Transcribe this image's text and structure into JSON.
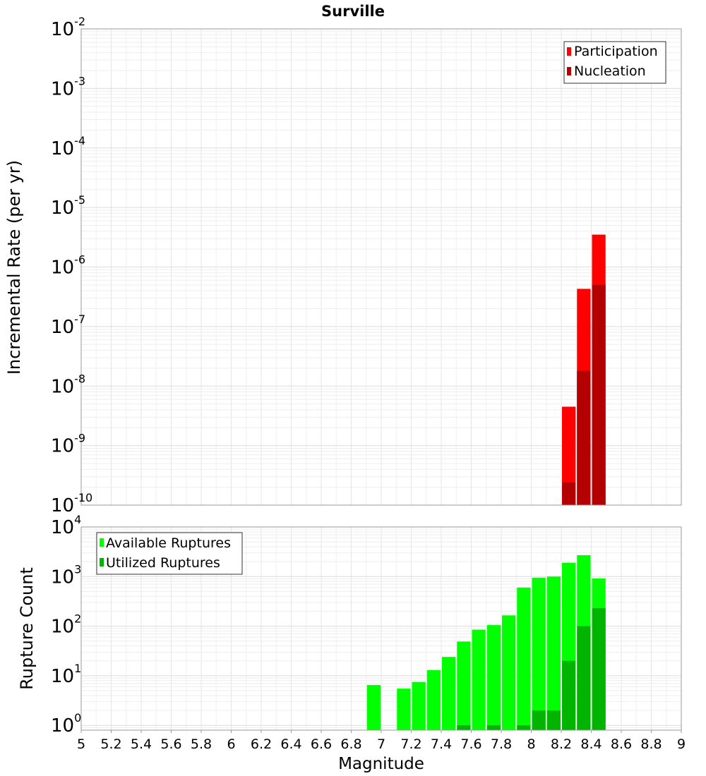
{
  "chart_data": [
    {
      "type": "bar",
      "title": "Surville",
      "xlabel": "",
      "ylabel": "Incremental Rate (per yr)",
      "xlim": [
        5,
        9
      ],
      "ylim": [
        1e-10,
        0.01
      ],
      "yscale": "log",
      "y_tick_exponents": [
        "-10",
        "-9",
        "-8",
        "-7",
        "-6",
        "-5",
        "-4",
        "-3",
        "-2"
      ],
      "grid": true,
      "legend_position": "top-right",
      "bar_width": 0.1,
      "series": [
        {
          "name": "Participation",
          "color": "#ff0000",
          "points": [
            {
              "x": 8.25,
              "y": 4.5e-09
            },
            {
              "x": 8.35,
              "y": 4.3e-07
            },
            {
              "x": 8.45,
              "y": 3.5e-06
            }
          ]
        },
        {
          "name": "Nucleation",
          "color": "#b40000",
          "points": [
            {
              "x": 8.25,
              "y": 2.4e-10
            },
            {
              "x": 8.35,
              "y": 1.8e-08
            },
            {
              "x": 8.45,
              "y": 5e-07
            }
          ]
        }
      ]
    },
    {
      "type": "bar",
      "title": "",
      "xlabel": "Magnitude",
      "ylabel": "Rupture Count",
      "xlim": [
        5,
        9
      ],
      "ylim": [
        0.8,
        10000
      ],
      "yscale": "log",
      "y_tick_exponents": [
        "0",
        "1",
        "2",
        "3",
        "4"
      ],
      "x_ticks": [
        "5",
        "5.2",
        "5.4",
        "5.6",
        "5.8",
        "6",
        "6.2",
        "6.4",
        "6.6",
        "6.8",
        "7",
        "7.2",
        "7.4",
        "7.6",
        "7.8",
        "8",
        "8.2",
        "8.4",
        "8.6",
        "8.8",
        "9"
      ],
      "grid": true,
      "legend_position": "top-left",
      "bar_width": 0.1,
      "series": [
        {
          "name": "Available Ruptures",
          "color": "#00ff00",
          "points": [
            {
              "x": 6.95,
              "y": 6.5
            },
            {
              "x": 7.15,
              "y": 5.5
            },
            {
              "x": 7.25,
              "y": 7.5
            },
            {
              "x": 7.35,
              "y": 13
            },
            {
              "x": 7.45,
              "y": 24
            },
            {
              "x": 7.55,
              "y": 49
            },
            {
              "x": 7.65,
              "y": 85
            },
            {
              "x": 7.75,
              "y": 105
            },
            {
              "x": 7.85,
              "y": 165
            },
            {
              "x": 7.95,
              "y": 600
            },
            {
              "x": 8.05,
              "y": 950
            },
            {
              "x": 8.15,
              "y": 1000
            },
            {
              "x": 8.25,
              "y": 1900
            },
            {
              "x": 8.35,
              "y": 2700
            },
            {
              "x": 8.45,
              "y": 920
            }
          ]
        },
        {
          "name": "Utilized Ruptures",
          "color": "#00b400",
          "points": [
            {
              "x": 7.55,
              "y": 1
            },
            {
              "x": 7.75,
              "y": 1
            },
            {
              "x": 7.95,
              "y": 1
            },
            {
              "x": 8.05,
              "y": 2
            },
            {
              "x": 8.15,
              "y": 2
            },
            {
              "x": 8.25,
              "y": 20
            },
            {
              "x": 8.35,
              "y": 100
            },
            {
              "x": 8.45,
              "y": 230
            }
          ]
        }
      ]
    }
  ]
}
